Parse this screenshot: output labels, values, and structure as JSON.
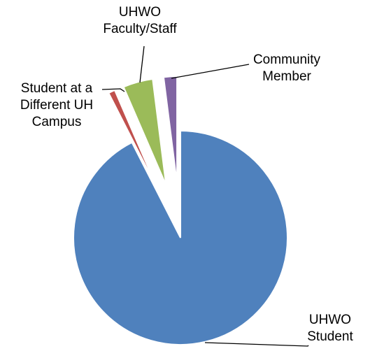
{
  "chart_data": {
    "type": "pie",
    "categories": [
      "UHWO Student",
      "Student at a Different UH Campus",
      "UHWO Faculty/Staff",
      "Community Member"
    ],
    "values": [
      92.5,
      1,
      4.5,
      2
    ],
    "colors": [
      "#4f81bd",
      "#c0504d",
      "#9bbb59",
      "#8064a2"
    ]
  }
}
